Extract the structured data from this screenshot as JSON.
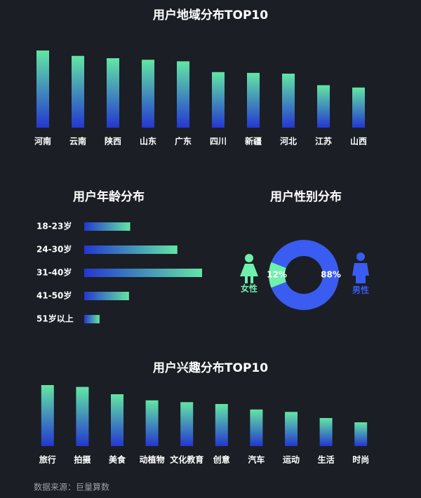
{
  "chart_data": [
    {
      "type": "bar",
      "title": "用户地域分布TOP10",
      "categories": [
        "河南",
        "云南",
        "陕西",
        "山东",
        "广东",
        "四川",
        "新疆",
        "河北",
        "江苏",
        "山西"
      ],
      "values": [
        100,
        93,
        90,
        88,
        86,
        72,
        71,
        70,
        55,
        52
      ],
      "ylim": [
        0,
        100
      ],
      "gradient": [
        "#62e6a4",
        "#2437d0"
      ]
    },
    {
      "type": "hbar",
      "title": "用户年龄分布",
      "categories": [
        "18-23岁",
        "24-30岁",
        "31-40岁",
        "41-50岁",
        "51岁以上"
      ],
      "values": [
        39,
        79,
        100,
        38,
        13
      ],
      "xlim": [
        0,
        100
      ],
      "gradient": [
        "#2437d0",
        "#62e6a4"
      ]
    },
    {
      "type": "pie",
      "title": "用户性别分布",
      "categories": [
        "女性",
        "男性"
      ],
      "values": [
        12,
        88
      ],
      "value_labels": [
        "12%",
        "88%"
      ],
      "colors": [
        "#6ff0ad",
        "#3a5cf0"
      ]
    },
    {
      "type": "bar",
      "title": "用户兴趣分布TOP10",
      "categories": [
        "旅行",
        "拍摄",
        "美食",
        "动植物",
        "文化教育",
        "创意",
        "汽车",
        "运动",
        "生活",
        "时尚"
      ],
      "values": [
        100,
        97,
        85,
        75,
        72,
        69,
        60,
        56,
        46,
        39
      ],
      "ylim": [
        0,
        100
      ],
      "gradient": [
        "#62e6a4",
        "#2437d0"
      ]
    }
  ],
  "source": "数据来源：巨量算数"
}
